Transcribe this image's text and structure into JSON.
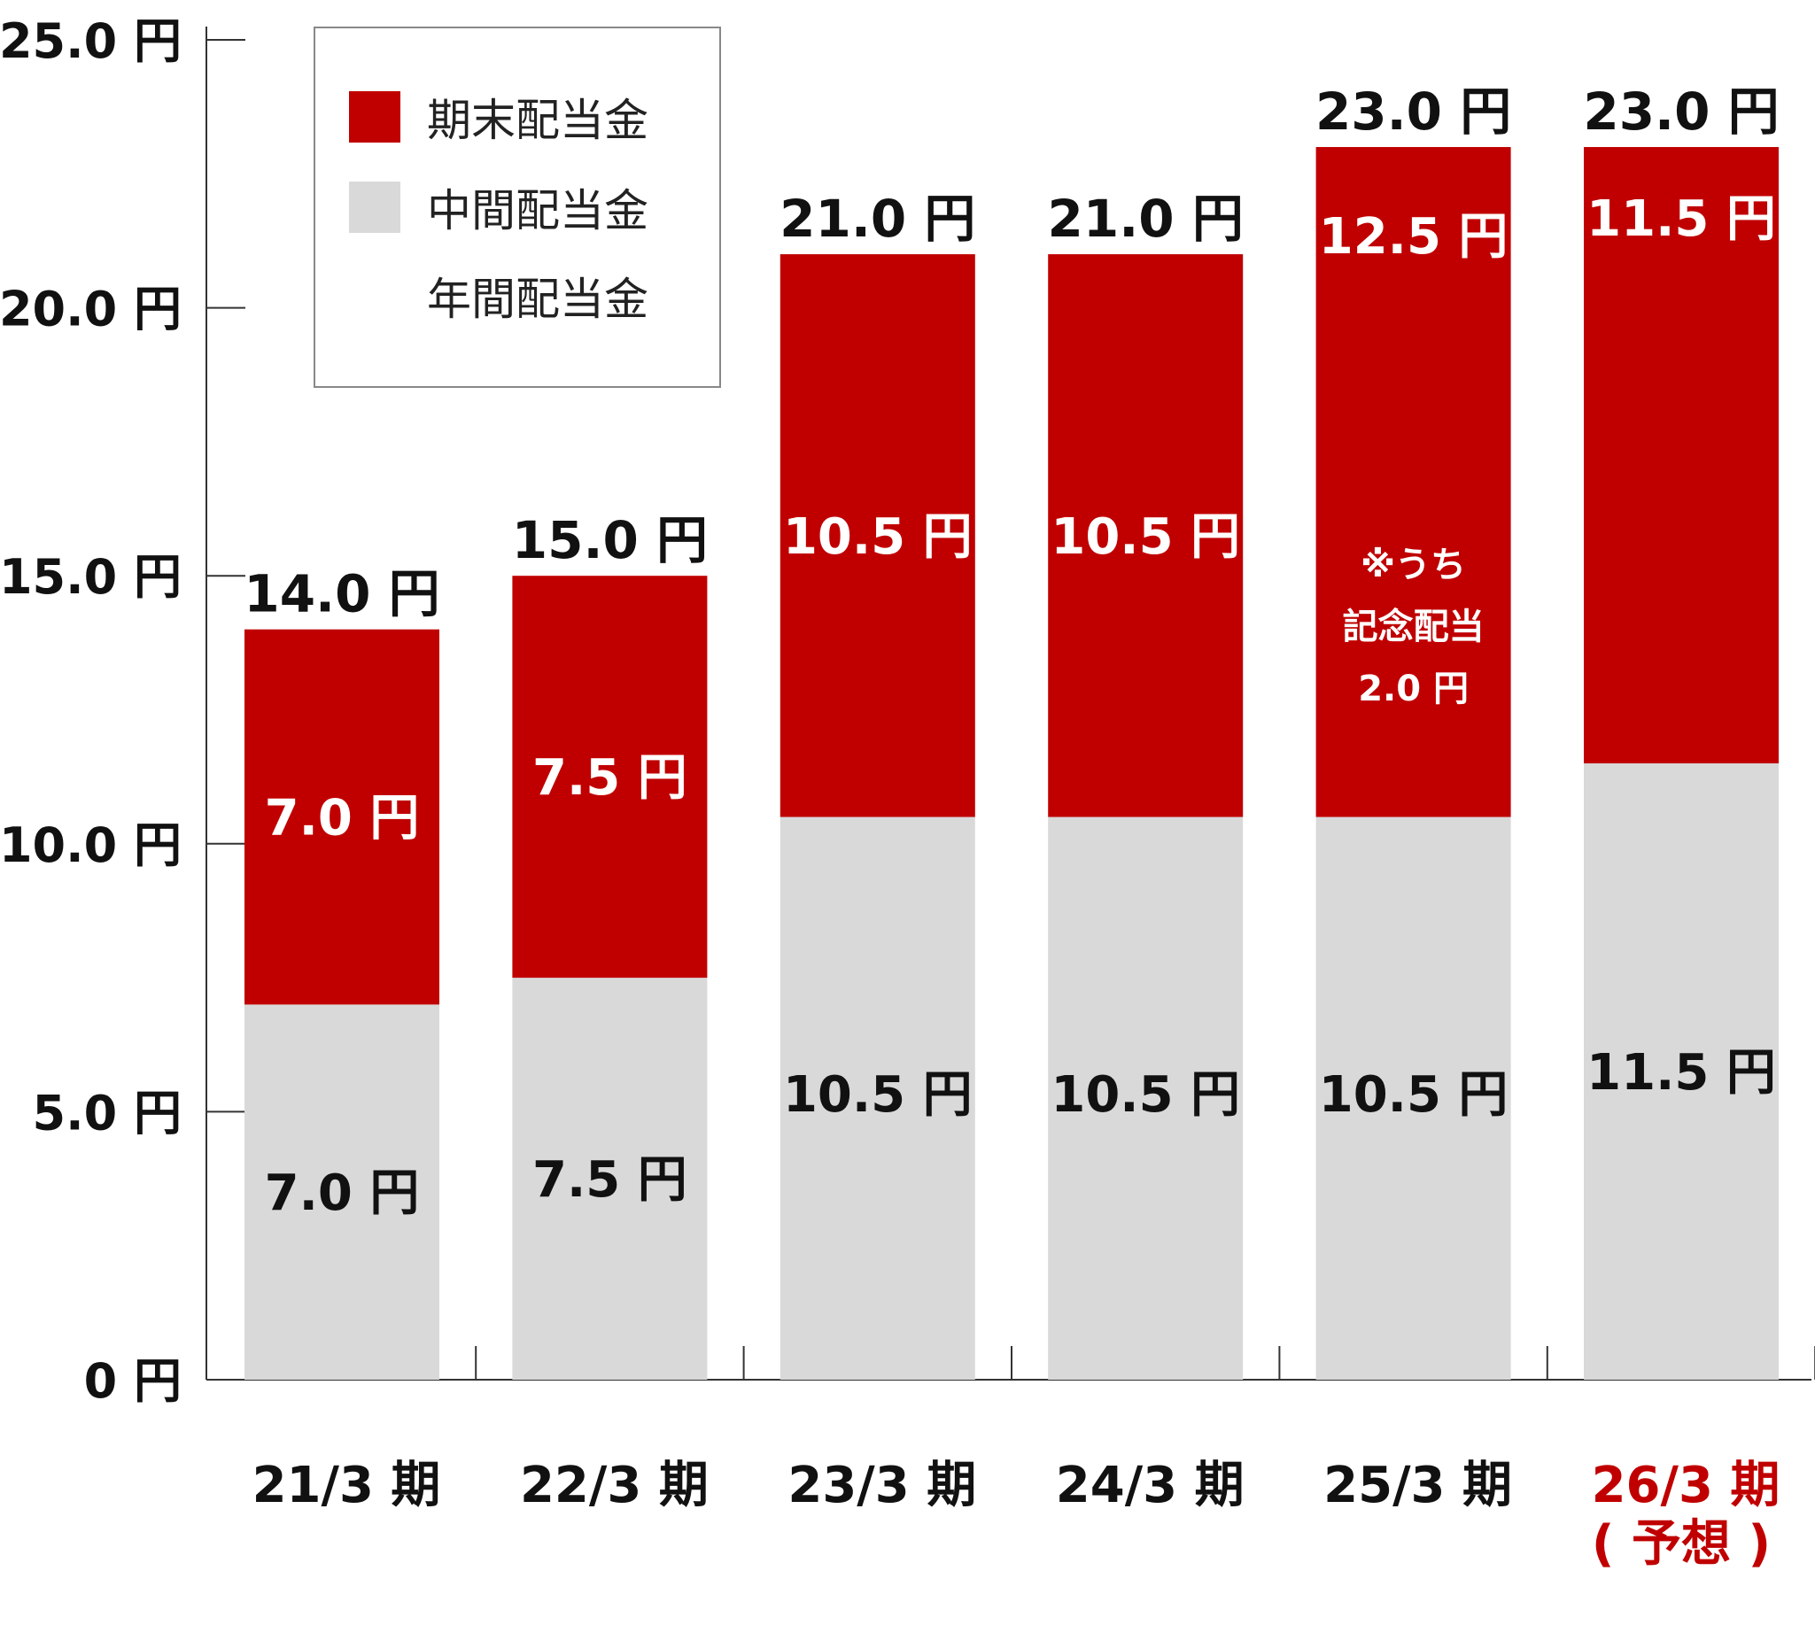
{
  "chart_data": {
    "type": "bar",
    "stacked": true,
    "categories": [
      "21/3 期",
      "22/3 期",
      "23/3 期",
      "24/3 期",
      "25/3 期",
      "26/3 期"
    ],
    "category_notes": [
      "",
      "",
      "",
      "",
      "",
      "( 予想 )"
    ],
    "highlight_category_index": 5,
    "series": [
      {
        "name": "中間配当金",
        "color": "#d9d9d9",
        "values": [
          7.0,
          7.5,
          10.5,
          10.5,
          10.5,
          11.5
        ],
        "labels": [
          "7.0 円",
          "7.5 円",
          "10.5 円",
          "10.5 円",
          "10.5 円",
          "11.5 円"
        ]
      },
      {
        "name": "期末配当金",
        "color": "#c00000",
        "values": [
          7.0,
          7.5,
          10.5,
          10.5,
          12.5,
          11.5
        ],
        "labels": [
          "7.0 円",
          "7.5 円",
          "10.5 円",
          "10.5 円",
          "12.5 円",
          "11.5 円"
        ]
      }
    ],
    "totals": [
      14.0,
      15.0,
      21.0,
      21.0,
      23.0,
      23.0
    ],
    "total_labels": [
      "14.0 円",
      "15.0 円",
      "21.0 円",
      "21.0 円",
      "23.0 円",
      "23.0 円"
    ],
    "notes": [
      {
        "category_index": 5,
        "lines": []
      }
    ],
    "bar_notes": [
      {
        "category_index": 4,
        "lines": [
          "※うち",
          "記念配当",
          "2.0 円"
        ]
      }
    ],
    "legend_total_label": "年間配当金",
    "ylim": [
      0,
      25
    ],
    "yticks": [
      0,
      5,
      10,
      15,
      20,
      25
    ],
    "ytick_labels": [
      "0 円",
      "5.0 円",
      "10.0 円",
      "15.0 円",
      "20.0 円",
      "25.0 円"
    ],
    "grid": false,
    "legend_position": "top-left",
    "title": "",
    "xlabel": "",
    "ylabel": ""
  },
  "colors": {
    "accent": "#c00000",
    "interim": "#d9d9d9",
    "text": "#111111"
  }
}
